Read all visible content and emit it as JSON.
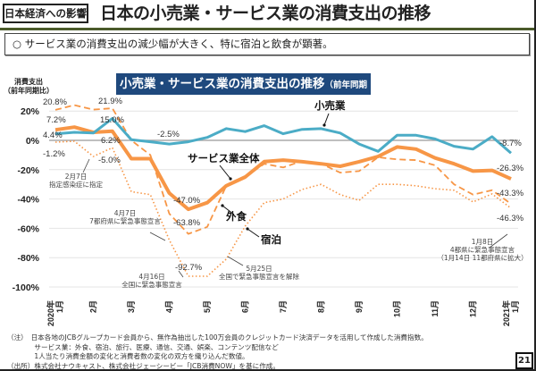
{
  "header": {
    "tag": "日本経済への影響",
    "title": "日本の小売業・サービス業の消費支出の推移"
  },
  "summary": "○ サービス業の消費支出の減少幅が大きく、特に宿泊と飲食が顕著。",
  "chart_data": {
    "type": "line",
    "title": "小売業・サービス業の消費支出の推移",
    "title_note": "（前年同期比）",
    "ylabel": [
      "消費支出",
      "（前年同期比）"
    ],
    "ylim": [
      -100,
      20
    ],
    "yticks": [
      "20%",
      "0%",
      "-20%",
      "-40%",
      "-60%",
      "-80%",
      "-100%"
    ],
    "ytick_values": [
      20,
      0,
      -20,
      -40,
      -60,
      -80,
      -100
    ],
    "x_tick_labels": [
      [
        "2020年",
        "1月"
      ],
      [
        "2月"
      ],
      [
        "3月"
      ],
      [
        "4月"
      ],
      [
        "5月"
      ],
      [
        "6月"
      ],
      [
        "7月"
      ],
      [
        "8月"
      ],
      [
        "9月"
      ],
      [
        "10月"
      ],
      [
        "11月"
      ],
      [
        "12月"
      ],
      [
        "2021年",
        "1月"
      ]
    ],
    "x_frequency": "semi-monthly (first and second half of each month), 2020年1月 – 2021年1月",
    "grid": true,
    "series": [
      {
        "name": "小売業",
        "color": "#4bacc6",
        "style": "solid",
        "values": [
          4.4,
          5.5,
          5,
          15.0,
          0.5,
          -1,
          -2.5,
          -1,
          2,
          8,
          6,
          10,
          4.5,
          7.5,
          8,
          5,
          -2.5,
          -7.5,
          3.5,
          3.5,
          1,
          -4,
          -6,
          2.5,
          -8.7
        ]
      },
      {
        "name": "サービス業全体",
        "color": "#f79646",
        "style": "thick",
        "values": [
          7.2,
          9,
          5.5,
          6.2,
          -12.5,
          -12.5,
          -36,
          -47.0,
          -42.5,
          -31,
          -25,
          -14.5,
          -13.5,
          -14.6,
          -16,
          -17.7,
          -14.6,
          -11,
          -4.5,
          -6,
          -12,
          -16,
          -21,
          -20.5,
          -26.3
        ]
      },
      {
        "name": "外食",
        "color": "#f79646",
        "style": "dashed",
        "values": [
          20.8,
          24,
          21,
          21.9,
          0,
          -10,
          -50,
          -63.8,
          -59,
          -31,
          -25,
          -16,
          -18.5,
          -14,
          -16,
          -22,
          -21,
          -11.5,
          -13,
          -13.5,
          -17,
          -30,
          -37,
          -34,
          -43.3
        ]
      },
      {
        "name": "宿泊",
        "color": "#f79646",
        "style": "dotted",
        "values": [
          -1.2,
          -0.6,
          -11,
          -5.0,
          -35,
          -37,
          -68,
          -92.7,
          -92.7,
          -81,
          -58.5,
          -42.5,
          -40,
          -33.5,
          -30,
          -37,
          -41,
          -30,
          -30,
          -31,
          -33,
          -34,
          -42,
          -36.5,
          -46.3
        ]
      }
    ],
    "data_labels": [
      "20.8%",
      "21.9%",
      "7.2%",
      "15.0%",
      "4.4%",
      "6.2%",
      "-1.2%",
      "-5.0%",
      "-2.5%",
      "-47.0%",
      "-63.8%",
      "-92.7%",
      "-8.7%",
      "-26.3%",
      "-43.3%",
      "-46.3%"
    ],
    "annotations": [
      [
        "2月7日",
        "指定感染症に指定"
      ],
      [
        "4月7日",
        "7都府県に緊急事態宣言"
      ],
      [
        "4月16日",
        "全国に緊急事態宣言"
      ],
      [
        "5月25日",
        "全国で緊急事態宣言を解除"
      ],
      [
        "1月8日",
        "4都県に緊急事態宣言",
        "（1月14日 11都府県に拡大）"
      ]
    ]
  },
  "notes": [
    "（注）　日本各地のJCBグループカード会員から、無作為抽出した100万会員のクレジットカード決済データを活用して作成した消費指数。",
    "　　　　サービス業：外食、宿泊、旅行、医療、通信、交通、娯楽、コンテンツ配信など",
    "　　　　1人当たり消費金額の変化と消費者数の変化の双方を織り込んだ数値。",
    "（出所）株式会社ナウキャスト、株式会社ジェーシービー「JCB消費NOW」を基に作成。"
  ],
  "page_number": "21"
}
